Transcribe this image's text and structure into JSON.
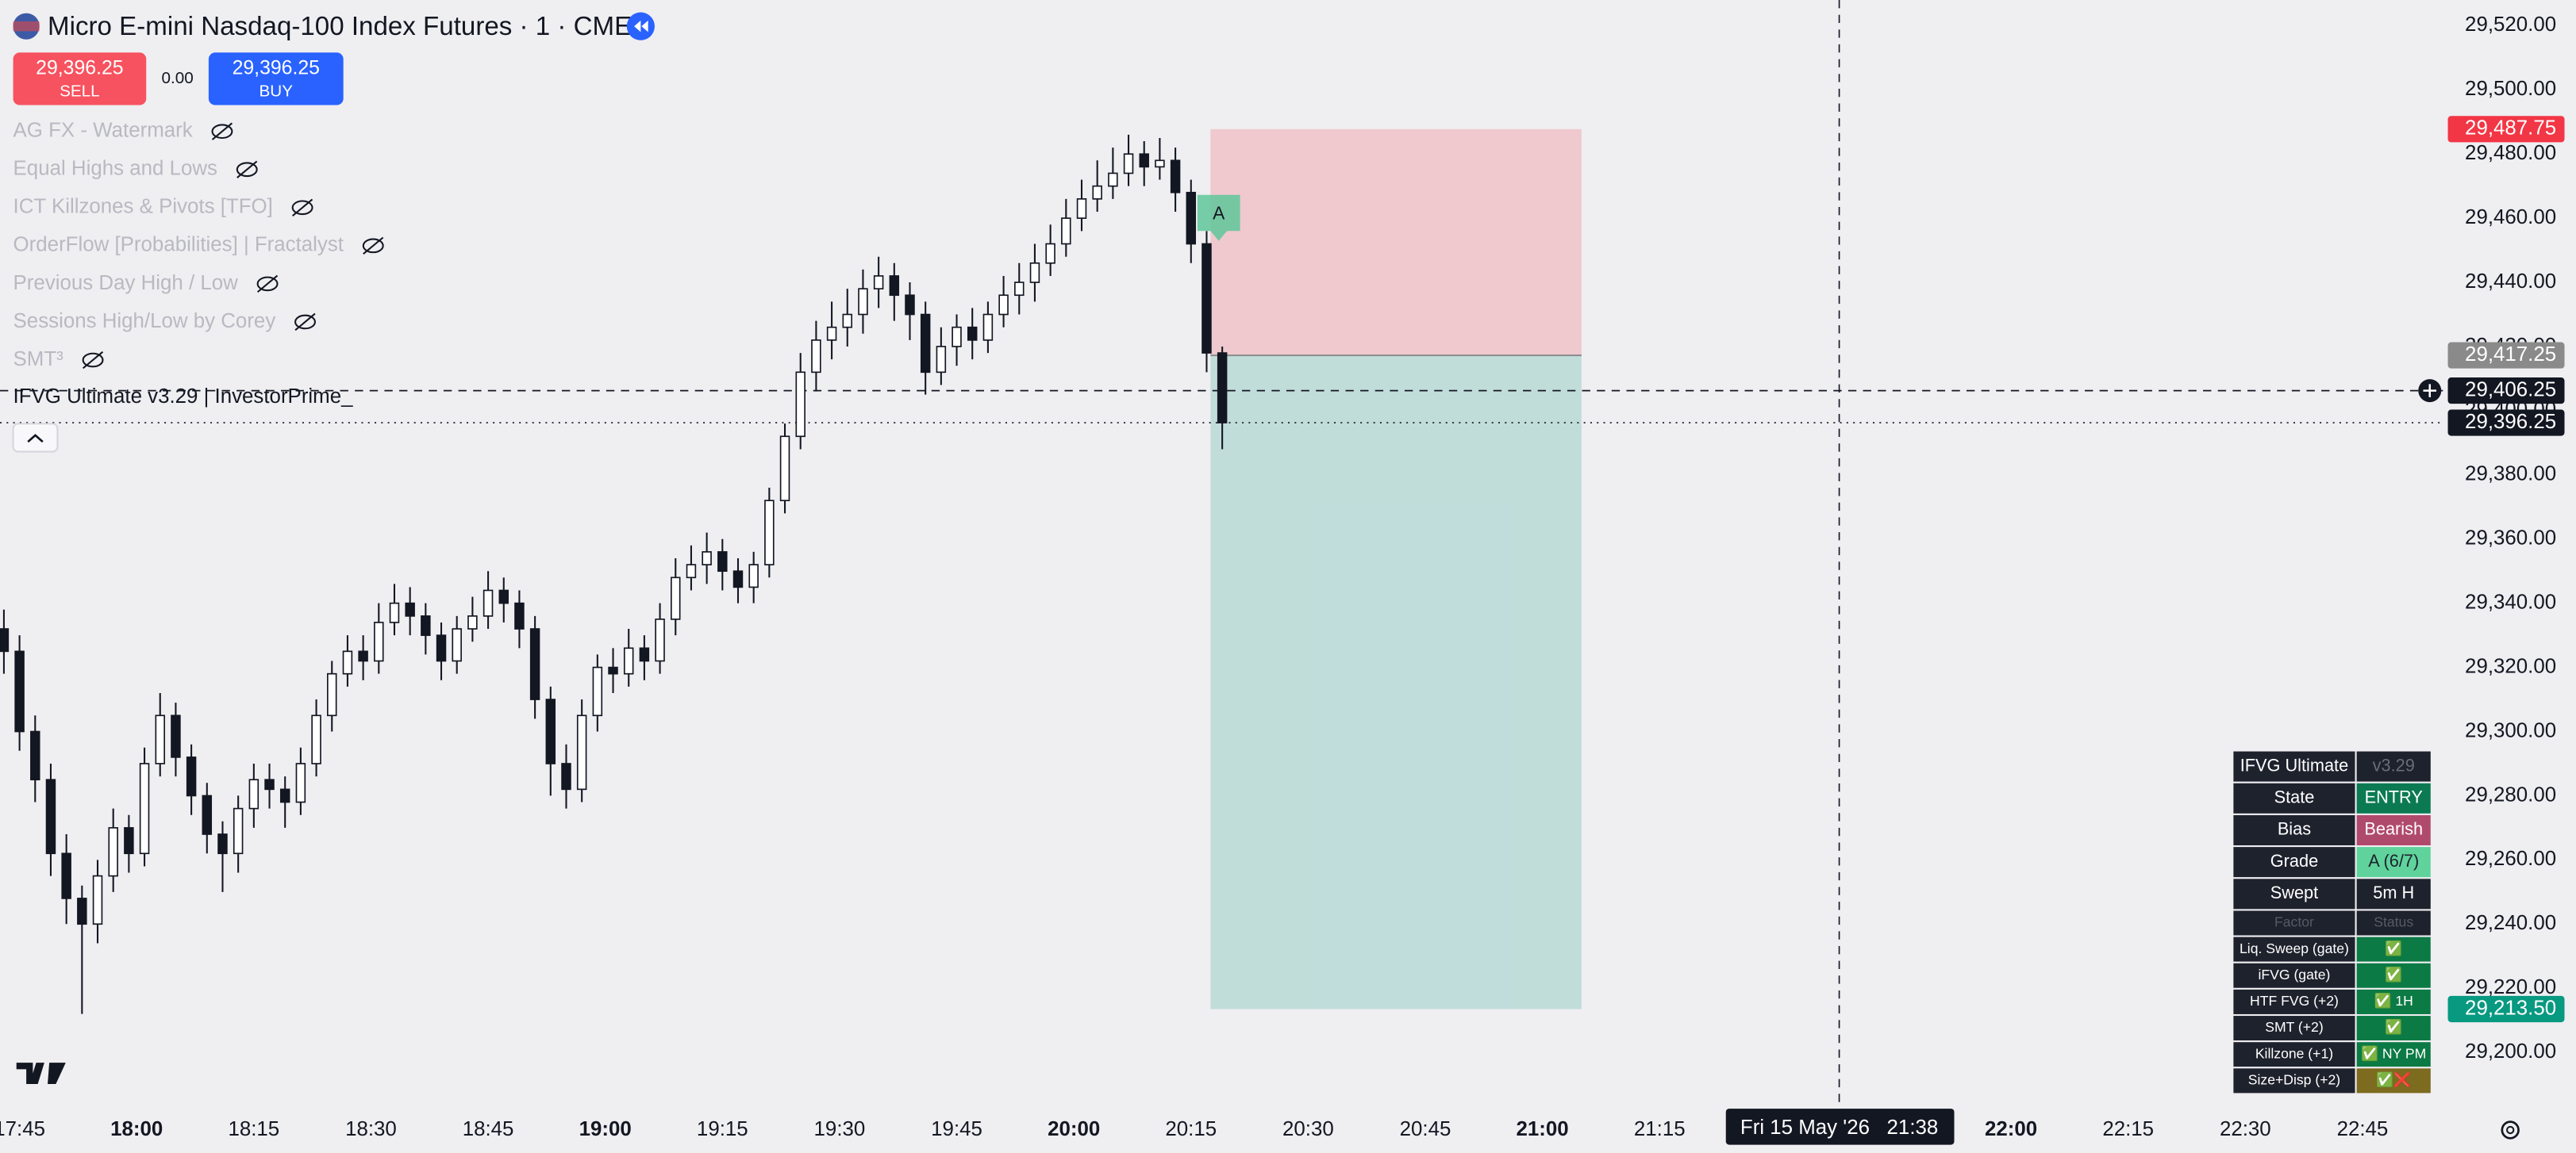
{
  "header": {
    "title": "Micro E-mini Nasdaq-100 Index Futures · 1 · CME",
    "sell": {
      "price": "29,396.25",
      "action": "SELL"
    },
    "spread": "0.00",
    "buy": {
      "price": "29,396.25",
      "action": "BUY"
    }
  },
  "indicators": [
    "AG FX - Watermark",
    "Equal Highs and Lows",
    "ICT Killzones & Pivots [TFO]",
    "OrderFlow [Probabilities] | Fractalyst",
    "Previous Day High / Low",
    "Sessions High/Low by Corey",
    "SMT³"
  ],
  "strategy_label": "IFVG Ultimate v3.29 | InvestorPrime_",
  "table": {
    "rows": [
      [
        "IFVG Ultimate",
        "v3.29"
      ],
      [
        "State",
        "ENTRY"
      ],
      [
        "Bias",
        "Bearish"
      ],
      [
        "Grade",
        "A (6/7)"
      ],
      [
        "Swept",
        "5m H"
      ],
      [
        "Factor",
        "Status"
      ],
      [
        "Liq. Sweep (gate)",
        "✅"
      ],
      [
        "iFVG (gate)",
        "✅"
      ],
      [
        "HTF FVG (+2)",
        "✅ 1H"
      ],
      [
        "SMT (+2)",
        "✅"
      ],
      [
        "Killzone (+1)",
        "✅ NY PM"
      ],
      [
        "Size+Disp (+2)",
        "✅❌"
      ]
    ]
  },
  "chart_data": {
    "type": "candlestick",
    "xlim": [
      1062.5,
      1375.3
    ],
    "ylim": [
      29184,
      29528
    ],
    "xticks": [
      {
        "value": 1065,
        "label": "17:45"
      },
      {
        "value": 1080,
        "label": "18:00"
      },
      {
        "value": 1095,
        "label": "18:15"
      },
      {
        "value": 1110,
        "label": "18:30"
      },
      {
        "value": 1125,
        "label": "18:45"
      },
      {
        "value": 1140,
        "label": "19:00"
      },
      {
        "value": 1155,
        "label": "19:15"
      },
      {
        "value": 1170,
        "label": "19:30"
      },
      {
        "value": 1185,
        "label": "19:45"
      },
      {
        "value": 1200,
        "label": "20:00"
      },
      {
        "value": 1215,
        "label": "20:15"
      },
      {
        "value": 1230,
        "label": "20:30"
      },
      {
        "value": 1245,
        "label": "20:45"
      },
      {
        "value": 1260,
        "label": "21:00"
      },
      {
        "value": 1275,
        "label": "21:15"
      },
      {
        "value": 1320,
        "label": "22:00"
      },
      {
        "value": 1335,
        "label": "22:15"
      },
      {
        "value": 1350,
        "label": "22:30"
      },
      {
        "value": 1365,
        "label": "22:45"
      }
    ],
    "yticks": [
      {
        "value": 29200,
        "label": "29,200.00"
      },
      {
        "value": 29220,
        "label": "29,220.00"
      },
      {
        "value": 29240,
        "label": "29,240.00"
      },
      {
        "value": 29260,
        "label": "29,260.00"
      },
      {
        "value": 29280,
        "label": "29,280.00"
      },
      {
        "value": 29300,
        "label": "29,300.00"
      },
      {
        "value": 29320,
        "label": "29,320.00"
      },
      {
        "value": 29340,
        "label": "29,340.00"
      },
      {
        "value": 29360,
        "label": "29,360.00"
      },
      {
        "value": 29380,
        "label": "29,380.00"
      },
      {
        "value": 29400,
        "label": "29,400.00"
      },
      {
        "value": 29420,
        "label": "29,420.00"
      },
      {
        "value": 29440,
        "label": "29,440.00"
      },
      {
        "value": 29460,
        "label": "29,460.00"
      },
      {
        "value": 29480,
        "label": "29,480.00"
      },
      {
        "value": 29500,
        "label": "29,500.00"
      },
      {
        "value": 29520,
        "label": "29,520.00"
      }
    ],
    "candles": {
      "x": [
        1063,
        1065,
        1067,
        1069,
        1071,
        1073,
        1075,
        1077,
        1079,
        1081,
        1083,
        1085,
        1087,
        1089,
        1091,
        1093,
        1095,
        1097,
        1099,
        1101,
        1103,
        1105,
        1107,
        1109,
        1111,
        1113,
        1115,
        1117,
        1119,
        1121,
        1123,
        1125,
        1127,
        1129,
        1131,
        1133,
        1135,
        1137,
        1139,
        1141,
        1143,
        1145,
        1147,
        1149,
        1151,
        1153,
        1155,
        1157,
        1159,
        1161,
        1163,
        1165,
        1167,
        1169,
        1171,
        1173,
        1175,
        1177,
        1179,
        1181,
        1183,
        1185,
        1187,
        1189,
        1191,
        1193,
        1195,
        1197,
        1199,
        1201,
        1203,
        1205,
        1207,
        1209,
        1211,
        1213,
        1215,
        1217,
        1219
      ],
      "open": [
        29332,
        29325,
        29300,
        29285,
        29262,
        29248,
        29240,
        29255,
        29270,
        29262,
        29290,
        29305,
        29292,
        29280,
        29268,
        29262,
        29276,
        29285,
        29282,
        29278,
        29290,
        29305,
        29318,
        29325,
        29322,
        29334,
        29340,
        29336,
        29330,
        29322,
        29332,
        29336,
        29344,
        29340,
        29332,
        29310,
        29290,
        29282,
        29305,
        29320,
        29318,
        29326,
        29322,
        29335,
        29348,
        29352,
        29356,
        29350,
        29345,
        29352,
        29372,
        29392,
        29412,
        29422,
        29426,
        29430,
        29438,
        29442,
        29436,
        29430,
        29412,
        29420,
        29426,
        29422,
        29430,
        29436,
        29440,
        29446,
        29452,
        29460,
        29466,
        29470,
        29474,
        29480,
        29476,
        29478,
        29468,
        29452,
        29418
      ],
      "high": [
        29338,
        29330,
        29305,
        29290,
        29268,
        29252,
        29260,
        29276,
        29274,
        29295,
        29312,
        29309,
        29296,
        29284,
        29272,
        29280,
        29290,
        29290,
        29286,
        29295,
        29310,
        29322,
        29330,
        29330,
        29340,
        29346,
        29345,
        29340,
        29334,
        29336,
        29342,
        29350,
        29348,
        29344,
        29336,
        29314,
        29296,
        29310,
        29324,
        29326,
        29332,
        29330,
        29340,
        29354,
        29358,
        29362,
        29360,
        29354,
        29356,
        29376,
        29396,
        29418,
        29428,
        29434,
        29438,
        29444,
        29448,
        29446,
        29440,
        29434,
        29426,
        29430,
        29432,
        29434,
        29442,
        29446,
        29452,
        29458,
        29466,
        29472,
        29478,
        29482,
        29486,
        29484,
        29485,
        29482,
        29472,
        29456,
        29420
      ],
      "low": [
        29318,
        29294,
        29278,
        29255,
        29240,
        29212,
        29234,
        29250,
        29256,
        29258,
        29286,
        29286,
        29274,
        29262,
        29250,
        29256,
        29270,
        29276,
        29270,
        29274,
        29286,
        29300,
        29314,
        29316,
        29318,
        29330,
        29330,
        29324,
        29316,
        29318,
        29328,
        29332,
        29334,
        29326,
        29304,
        29280,
        29276,
        29278,
        29300,
        29312,
        29314,
        29316,
        29318,
        29330,
        29344,
        29346,
        29344,
        29340,
        29340,
        29348,
        29368,
        29388,
        29406,
        29416,
        29420,
        29424,
        29432,
        29428,
        29422,
        29405,
        29408,
        29414,
        29416,
        29418,
        29426,
        29430,
        29434,
        29442,
        29448,
        29456,
        29462,
        29466,
        29470,
        29470,
        29472,
        29462,
        29446,
        29412,
        29388
      ],
      "close": [
        29325,
        29300,
        29285,
        29262,
        29248,
        29240,
        29255,
        29270,
        29262,
        29290,
        29305,
        29292,
        29280,
        29268,
        29262,
        29276,
        29285,
        29282,
        29278,
        29290,
        29305,
        29318,
        29325,
        29322,
        29334,
        29340,
        29336,
        29330,
        29322,
        29332,
        29336,
        29344,
        29340,
        29332,
        29310,
        29290,
        29282,
        29305,
        29320,
        29318,
        29326,
        29322,
        29335,
        29348,
        29352,
        29356,
        29350,
        29345,
        29352,
        29372,
        29392,
        29412,
        29422,
        29426,
        29430,
        29438,
        29442,
        29436,
        29430,
        29412,
        29420,
        29426,
        29422,
        29430,
        29436,
        29440,
        29446,
        29452,
        29460,
        29466,
        29470,
        29474,
        29480,
        29476,
        29478,
        29468,
        29452,
        29418,
        29396.25
      ]
    },
    "position": {
      "start": 1217.5,
      "end": 1265,
      "stop": {
        "value": 29487.75,
        "label": "29,487.75"
      },
      "entry": {
        "value": 29417.25,
        "label": "29,417.25"
      },
      "target": {
        "value": 29213.5,
        "label": "29,213.50"
      }
    },
    "signal_label": "A",
    "last_price": {
      "value": 29396.25,
      "label": "29,396.25"
    },
    "crosshair": {
      "price": {
        "value": 29406.25,
        "label": "29,406.25"
      },
      "time": {
        "value": 1298,
        "label": "Fri 15 May '26   21:38"
      }
    }
  }
}
